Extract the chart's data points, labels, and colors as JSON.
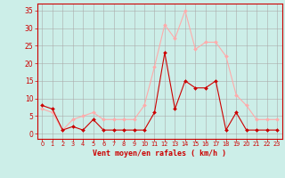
{
  "x": [
    0,
    1,
    2,
    3,
    4,
    5,
    6,
    7,
    8,
    9,
    10,
    11,
    12,
    13,
    14,
    15,
    16,
    17,
    18,
    19,
    20,
    21,
    22,
    23
  ],
  "wind_avg": [
    8,
    7,
    1,
    2,
    1,
    4,
    1,
    1,
    1,
    1,
    1,
    6,
    23,
    7,
    15,
    13,
    13,
    15,
    1,
    6,
    1,
    1,
    1,
    1
  ],
  "wind_gust": [
    7,
    6,
    1,
    4,
    5,
    6,
    4,
    4,
    4,
    4,
    8,
    19,
    31,
    27,
    35,
    24,
    26,
    26,
    22,
    11,
    8,
    4,
    4,
    4
  ],
  "color_avg": "#cc0000",
  "color_gust": "#ffaaaa",
  "bg_color": "#cceee8",
  "grid_color": "#aaaaaa",
  "xlabel": "Vent moyen/en rafales ( km/h )",
  "xlabel_color": "#cc0000",
  "yticks": [
    0,
    5,
    10,
    15,
    20,
    25,
    30,
    35
  ],
  "ylim": [
    -1.5,
    37
  ],
  "xlim": [
    -0.5,
    23.5
  ],
  "tick_color": "#cc0000",
  "marker_size": 2.0
}
